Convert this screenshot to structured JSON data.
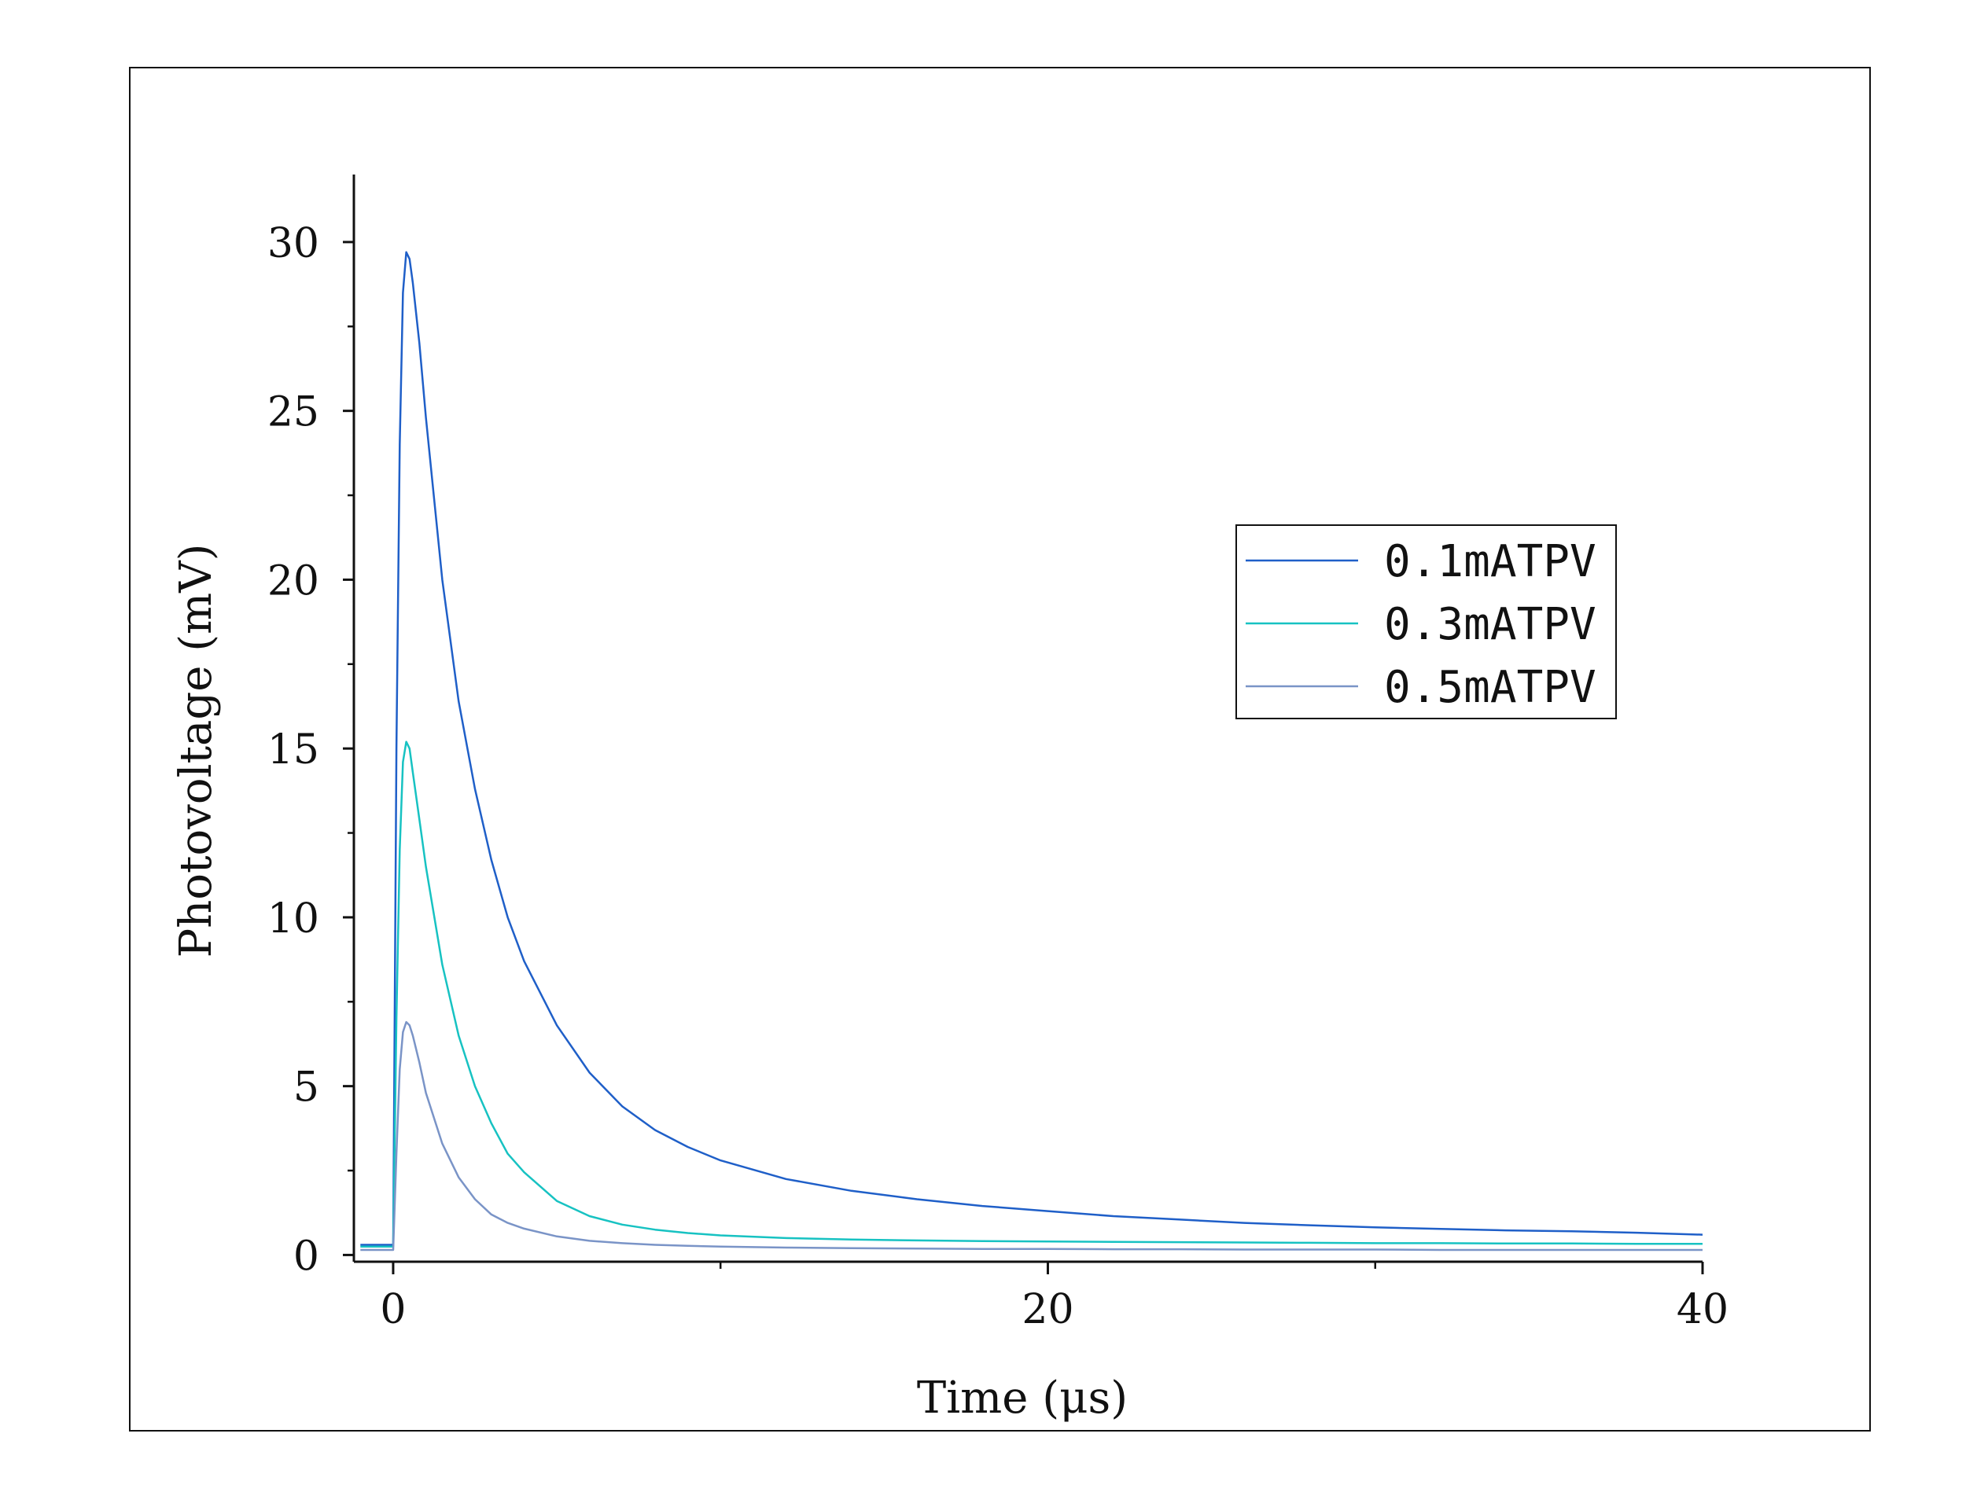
{
  "chart_data": {
    "type": "line",
    "xlabel": "Time (μs)",
    "ylabel": "Photovoltage (mV)",
    "xlim": [
      -1.2,
      40
    ],
    "ylim": [
      -0.2,
      32
    ],
    "xticks": [
      0,
      20,
      40
    ],
    "yticks": [
      0,
      5,
      10,
      15,
      20,
      25,
      30
    ],
    "grid": false,
    "legend_position": "right",
    "series": [
      {
        "name": "0.1mATPV",
        "color": "#1f5fc8",
        "x": [
          -1,
          -0.5,
          0,
          0.1,
          0.2,
          0.3,
          0.4,
          0.5,
          0.6,
          0.8,
          1,
          1.5,
          2,
          2.5,
          3,
          3.5,
          4,
          5,
          6,
          7,
          8,
          9,
          10,
          12,
          14,
          16,
          18,
          20,
          22,
          24,
          26,
          28,
          30,
          32,
          34,
          36,
          38,
          40
        ],
        "y": [
          0.3,
          0.3,
          0.3,
          15,
          24,
          28.5,
          29.7,
          29.5,
          28.8,
          27,
          24.8,
          20,
          16.4,
          13.8,
          11.7,
          10,
          8.7,
          6.8,
          5.4,
          4.4,
          3.7,
          3.2,
          2.8,
          2.25,
          1.9,
          1.65,
          1.45,
          1.3,
          1.15,
          1.05,
          0.95,
          0.88,
          0.82,
          0.77,
          0.73,
          0.7,
          0.66,
          0.6
        ]
      },
      {
        "name": "0.3mATPV",
        "color": "#17c2c2",
        "x": [
          -1,
          -0.5,
          0,
          0.1,
          0.2,
          0.3,
          0.4,
          0.5,
          0.6,
          0.8,
          1,
          1.5,
          2,
          2.5,
          3,
          3.5,
          4,
          5,
          6,
          7,
          8,
          9,
          10,
          12,
          14,
          16,
          18,
          20,
          22,
          24,
          26,
          28,
          30,
          32,
          34,
          36,
          38,
          40
        ],
        "y": [
          0.25,
          0.25,
          0.25,
          7,
          12,
          14.6,
          15.2,
          15,
          14.3,
          12.9,
          11.5,
          8.6,
          6.5,
          5,
          3.9,
          3,
          2.45,
          1.6,
          1.15,
          0.9,
          0.75,
          0.65,
          0.58,
          0.5,
          0.46,
          0.43,
          0.41,
          0.4,
          0.39,
          0.38,
          0.37,
          0.36,
          0.35,
          0.35,
          0.34,
          0.34,
          0.33,
          0.33
        ]
      },
      {
        "name": "0.5mATPV",
        "color": "#7a94c7",
        "x": [
          -1,
          -0.5,
          0,
          0.1,
          0.2,
          0.3,
          0.4,
          0.5,
          0.6,
          0.8,
          1,
          1.5,
          2,
          2.5,
          3,
          3.5,
          4,
          5,
          6,
          7,
          8,
          9,
          10,
          12,
          14,
          16,
          18,
          20,
          22,
          24,
          26,
          28,
          30,
          32,
          34,
          36,
          38,
          40
        ],
        "y": [
          0.15,
          0.15,
          0.15,
          3,
          5.5,
          6.6,
          6.9,
          6.8,
          6.5,
          5.7,
          4.8,
          3.3,
          2.3,
          1.65,
          1.2,
          0.95,
          0.78,
          0.55,
          0.42,
          0.35,
          0.3,
          0.27,
          0.25,
          0.22,
          0.2,
          0.19,
          0.18,
          0.18,
          0.17,
          0.17,
          0.16,
          0.16,
          0.16,
          0.15,
          0.15,
          0.15,
          0.15,
          0.15
        ]
      }
    ]
  }
}
